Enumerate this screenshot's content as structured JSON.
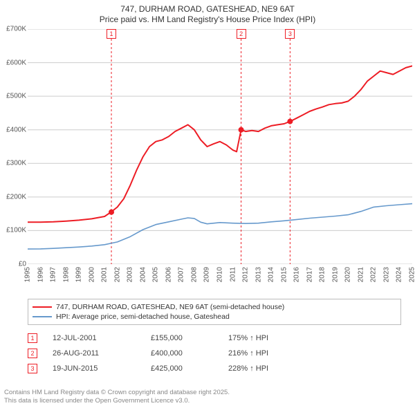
{
  "title": {
    "line1": "747, DURHAM ROAD, GATESHEAD, NE9 6AT",
    "line2": "Price paid vs. HM Land Registry's House Price Index (HPI)"
  },
  "chart": {
    "type": "line",
    "background_color": "#ffffff",
    "grid_color": "#cccccc",
    "x": {
      "min": 1995,
      "max": 2025,
      "ticks": [
        1995,
        1996,
        1997,
        1998,
        1999,
        2000,
        2001,
        2002,
        2003,
        2004,
        2005,
        2006,
        2007,
        2008,
        2009,
        2010,
        2011,
        2012,
        2013,
        2014,
        2015,
        2016,
        2017,
        2018,
        2019,
        2020,
        2021,
        2022,
        2023,
        2024,
        2025
      ],
      "label_fontsize": 10,
      "label_rotation_deg": -90
    },
    "y": {
      "min": 0,
      "max": 700000,
      "ticks": [
        0,
        100000,
        200000,
        300000,
        400000,
        500000,
        600000,
        700000
      ],
      "tick_labels": [
        "£0",
        "£100K",
        "£200K",
        "£300K",
        "£400K",
        "£500K",
        "£600K",
        "£700K"
      ],
      "label_fontsize": 10
    },
    "series": [
      {
        "name": "price_paid",
        "label": "747, DURHAM ROAD, GATESHEAD, NE9 6AT (semi-detached house)",
        "color": "#ed1c24",
        "line_width": 2,
        "data": [
          [
            1995.0,
            125000
          ],
          [
            1996.0,
            125000
          ],
          [
            1997.0,
            126000
          ],
          [
            1998.0,
            128000
          ],
          [
            1999.0,
            131000
          ],
          [
            2000.0,
            135000
          ],
          [
            2001.0,
            142000
          ],
          [
            2001.5,
            155000
          ],
          [
            2002.0,
            170000
          ],
          [
            2002.5,
            195000
          ],
          [
            2003.0,
            235000
          ],
          [
            2003.5,
            280000
          ],
          [
            2004.0,
            320000
          ],
          [
            2004.5,
            350000
          ],
          [
            2005.0,
            365000
          ],
          [
            2005.5,
            370000
          ],
          [
            2006.0,
            380000
          ],
          [
            2006.5,
            395000
          ],
          [
            2007.0,
            405000
          ],
          [
            2007.5,
            415000
          ],
          [
            2008.0,
            400000
          ],
          [
            2008.5,
            370000
          ],
          [
            2009.0,
            350000
          ],
          [
            2009.5,
            358000
          ],
          [
            2010.0,
            365000
          ],
          [
            2010.5,
            355000
          ],
          [
            2011.0,
            340000
          ],
          [
            2011.3,
            335000
          ],
          [
            2011.65,
            400000
          ],
          [
            2012.0,
            395000
          ],
          [
            2012.5,
            398000
          ],
          [
            2013.0,
            395000
          ],
          [
            2013.5,
            405000
          ],
          [
            2014.0,
            412000
          ],
          [
            2014.5,
            415000
          ],
          [
            2015.0,
            418000
          ],
          [
            2015.47,
            425000
          ],
          [
            2016.0,
            435000
          ],
          [
            2016.5,
            445000
          ],
          [
            2017.0,
            455000
          ],
          [
            2017.5,
            462000
          ],
          [
            2018.0,
            468000
          ],
          [
            2018.5,
            475000
          ],
          [
            2019.0,
            478000
          ],
          [
            2019.5,
            480000
          ],
          [
            2020.0,
            485000
          ],
          [
            2020.5,
            500000
          ],
          [
            2021.0,
            520000
          ],
          [
            2021.5,
            545000
          ],
          [
            2022.0,
            560000
          ],
          [
            2022.5,
            575000
          ],
          [
            2023.0,
            570000
          ],
          [
            2023.5,
            565000
          ],
          [
            2024.0,
            575000
          ],
          [
            2024.5,
            585000
          ],
          [
            2025.0,
            590000
          ]
        ],
        "markers": [
          {
            "x": 2001.53,
            "y": 155000
          },
          {
            "x": 2011.65,
            "y": 400000
          },
          {
            "x": 2015.47,
            "y": 425000
          }
        ]
      },
      {
        "name": "hpi",
        "label": "HPI: Average price, semi-detached house, Gateshead",
        "color": "#6699cc",
        "line_width": 1.6,
        "data": [
          [
            1995.0,
            45000
          ],
          [
            1996.0,
            45500
          ],
          [
            1997.0,
            47000
          ],
          [
            1998.0,
            49000
          ],
          [
            1999.0,
            51000
          ],
          [
            2000.0,
            54000
          ],
          [
            2001.0,
            58000
          ],
          [
            2002.0,
            66000
          ],
          [
            2003.0,
            82000
          ],
          [
            2004.0,
            103000
          ],
          [
            2005.0,
            118000
          ],
          [
            2006.0,
            126000
          ],
          [
            2007.0,
            134000
          ],
          [
            2007.5,
            138000
          ],
          [
            2008.0,
            136000
          ],
          [
            2008.5,
            125000
          ],
          [
            2009.0,
            120000
          ],
          [
            2010.0,
            124000
          ],
          [
            2011.0,
            122000
          ],
          [
            2012.0,
            121000
          ],
          [
            2013.0,
            122000
          ],
          [
            2014.0,
            126000
          ],
          [
            2015.0,
            129000
          ],
          [
            2016.0,
            133000
          ],
          [
            2017.0,
            137000
          ],
          [
            2018.0,
            140000
          ],
          [
            2019.0,
            143000
          ],
          [
            2020.0,
            147000
          ],
          [
            2021.0,
            157000
          ],
          [
            2022.0,
            170000
          ],
          [
            2023.0,
            174000
          ],
          [
            2024.0,
            177000
          ],
          [
            2025.0,
            180000
          ]
        ]
      }
    ],
    "event_flags": [
      {
        "num": "1",
        "x": 2001.53
      },
      {
        "num": "2",
        "x": 2011.65
      },
      {
        "num": "3",
        "x": 2015.47
      }
    ],
    "marker_radius": 4,
    "marker_fill": "#ed1c24",
    "flag_line_color": "#ed1c24",
    "flag_line_dash": "3,3"
  },
  "legend": {
    "items": [
      {
        "color": "#ed1c24",
        "label": "747, DURHAM ROAD, GATESHEAD, NE9 6AT (semi-detached house)"
      },
      {
        "color": "#6699cc",
        "label": "HPI: Average price, semi-detached house, Gateshead"
      }
    ]
  },
  "events": [
    {
      "num": "1",
      "date": "12-JUL-2001",
      "price": "£155,000",
      "hpi": "175% ↑ HPI"
    },
    {
      "num": "2",
      "date": "26-AUG-2011",
      "price": "£400,000",
      "hpi": "216% ↑ HPI"
    },
    {
      "num": "3",
      "date": "19-JUN-2015",
      "price": "£425,000",
      "hpi": "228% ↑ HPI"
    }
  ],
  "footer": {
    "line1": "Contains HM Land Registry data © Crown copyright and database right 2025.",
    "line2": "This data is licensed under the Open Government Licence v3.0."
  }
}
